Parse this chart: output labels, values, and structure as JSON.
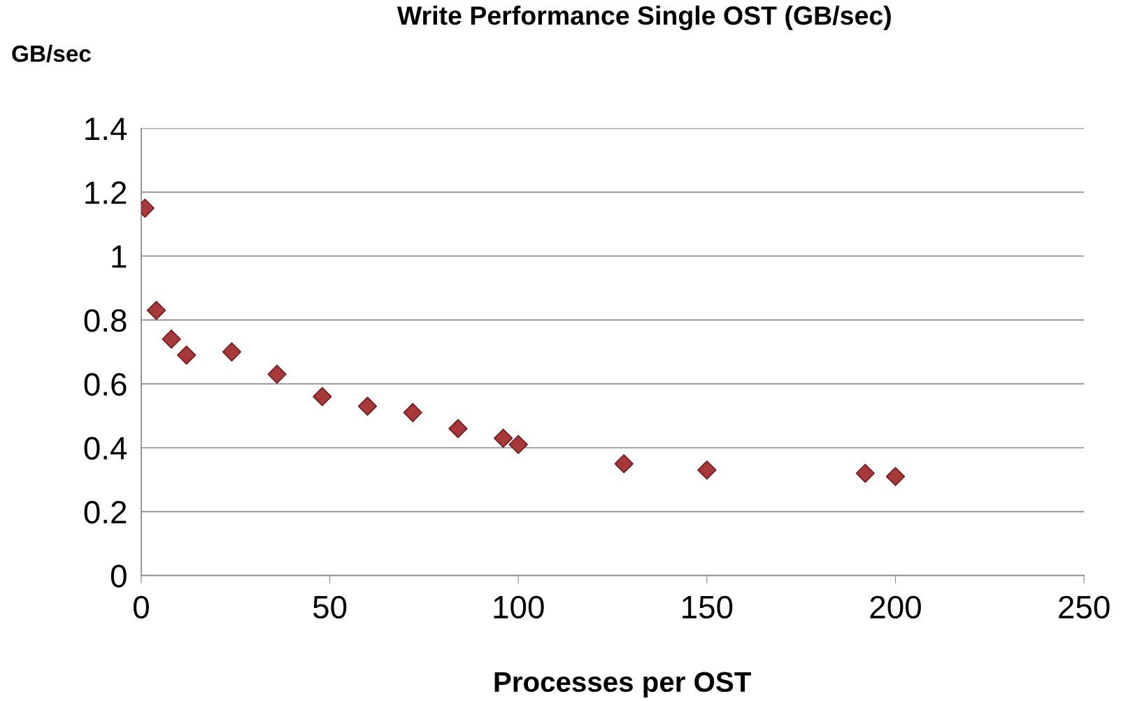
{
  "chart_data": {
    "type": "scatter",
    "title": "Write Performance Single OST (GB/sec)",
    "xlabel": "Processes per OST",
    "ylabel": "GB/sec",
    "x": [
      1,
      4,
      8,
      12,
      24,
      36,
      48,
      60,
      72,
      84,
      96,
      100,
      128,
      150,
      192,
      200
    ],
    "series": [
      {
        "color": "#a8393b",
        "values": [
          1.15,
          0.83,
          0.74,
          0.69,
          0.7,
          0.63,
          0.56,
          0.53,
          0.51,
          0.46,
          0.43,
          0.41,
          0.35,
          0.33,
          0.32,
          0.31
        ]
      }
    ],
    "xlim": [
      0,
      250
    ],
    "xticks": [
      0,
      50,
      100,
      150,
      200,
      250
    ],
    "ylim": [
      0,
      1.4
    ],
    "yticks": [
      0,
      0.2,
      0.4,
      0.6,
      0.8,
      1,
      1.2,
      1.4
    ],
    "grid": "y",
    "marker": "diamond"
  }
}
